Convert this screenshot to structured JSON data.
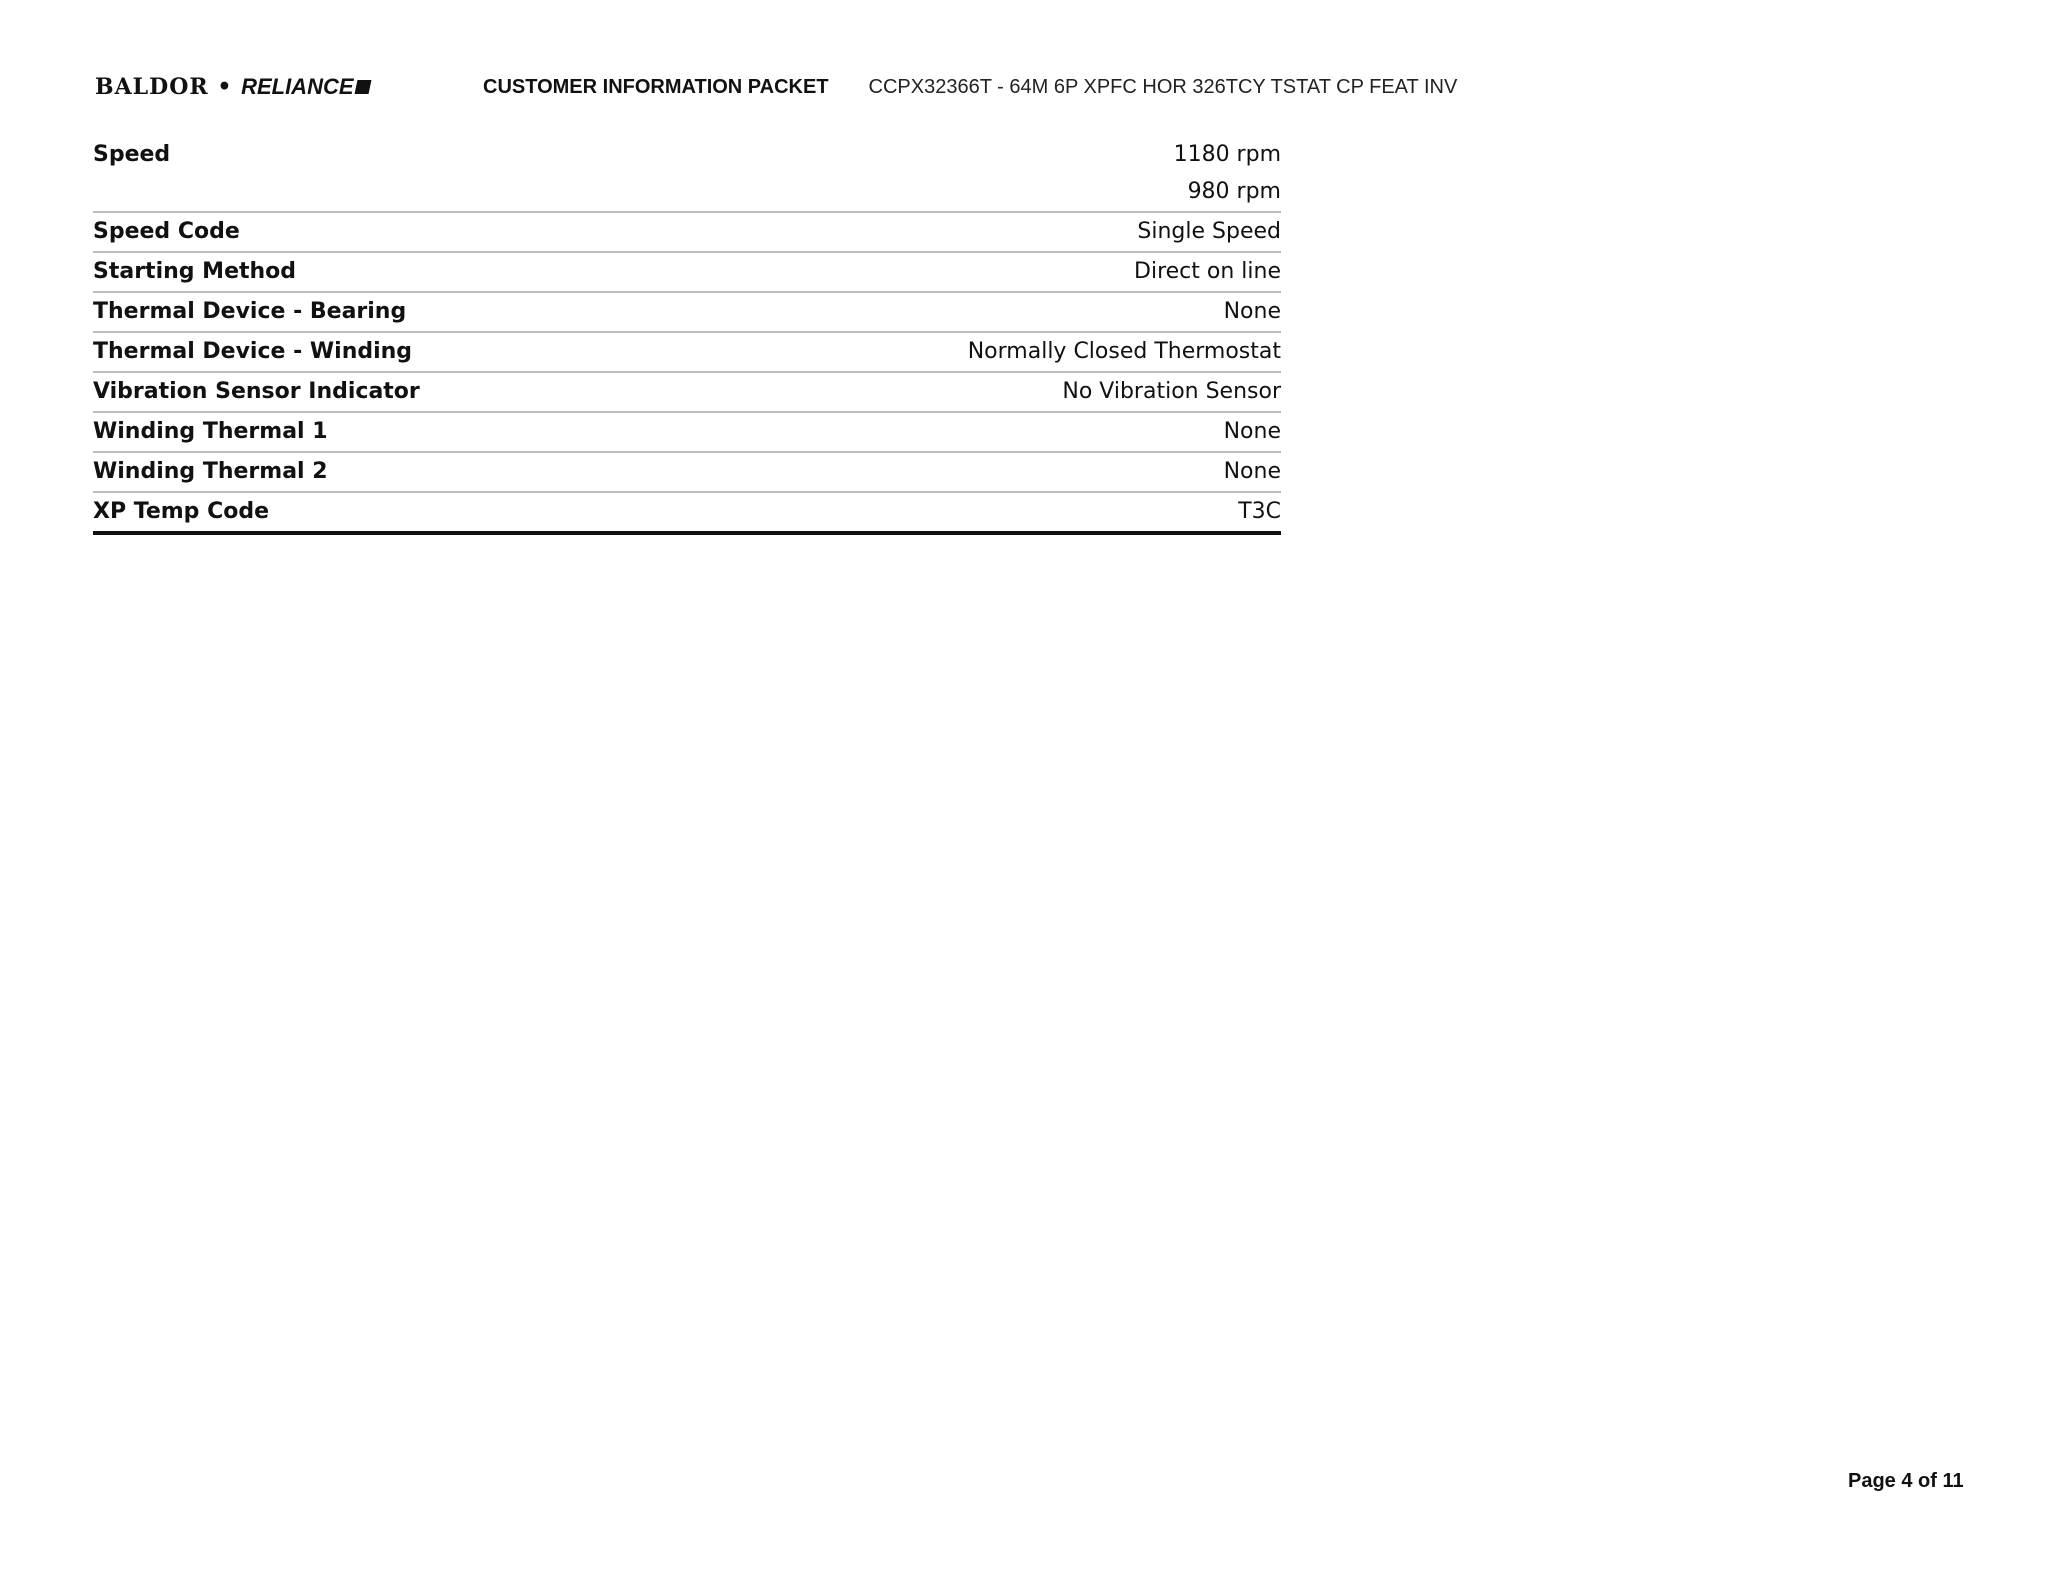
{
  "header": {
    "logo": "BALDOR • RELIANCE",
    "logo_left": "BALDOR",
    "logo_right": "RELIANCE",
    "title": "CUSTOMER INFORMATION PACKET",
    "product_code": "CCPX32366T - 64M 6P XPFC HOR 326TCY TSTAT CP FEAT INV"
  },
  "specs": [
    {
      "label": "Speed",
      "values": [
        "1180 rpm",
        "980 rpm"
      ]
    },
    {
      "label": "Speed Code",
      "values": [
        "Single Speed"
      ]
    },
    {
      "label": "Starting Method",
      "values": [
        "Direct on line"
      ]
    },
    {
      "label": "Thermal Device - Bearing",
      "values": [
        "None"
      ]
    },
    {
      "label": "Thermal Device - Winding",
      "values": [
        "Normally Closed Thermostat"
      ]
    },
    {
      "label": "Vibration Sensor Indicator",
      "values": [
        "No Vibration Sensor"
      ]
    },
    {
      "label": "Winding Thermal 1",
      "values": [
        "None"
      ]
    },
    {
      "label": "Winding Thermal 2",
      "values": [
        "None"
      ]
    },
    {
      "label": "XP Temp Code",
      "values": [
        "T3C"
      ]
    }
  ],
  "footer": {
    "page": "Page 4 of 11"
  }
}
